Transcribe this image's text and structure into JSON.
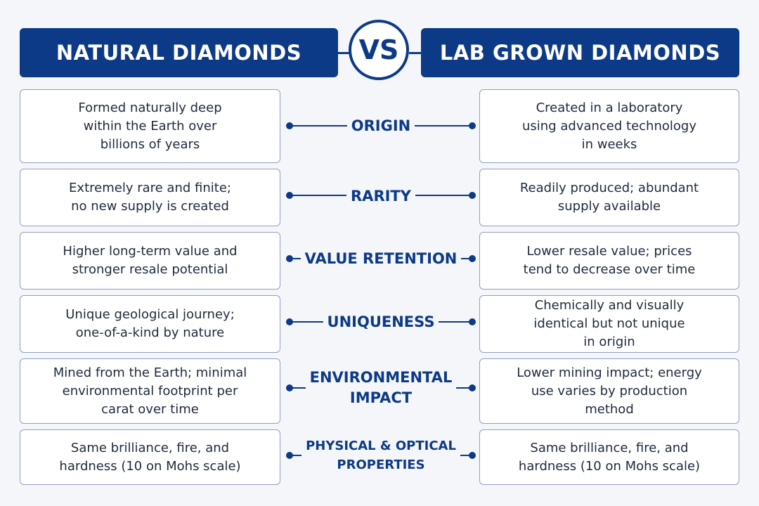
{
  "header": {
    "left_title": "NATURAL DIAMONDS",
    "vs": "VS",
    "right_title": "LAB GROWN DIAMONDS"
  },
  "colors": {
    "primary": "#0d3a86",
    "background": "#f4f6fa",
    "box_border": "#8e9fc0",
    "body_text": "#1e2a3c"
  },
  "rows": [
    {
      "category": "ORIGIN",
      "natural": "Formed naturally deep\nwithin the Earth over\nbillions of years",
      "lab": "Created in a laboratory\nusing advanced technology\nin weeks"
    },
    {
      "category": "RARITY",
      "natural": "Extremely rare and finite;\nno new supply is created",
      "lab": "Readily produced; abundant\nsupply available"
    },
    {
      "category": "VALUE RETENTION",
      "natural": "Higher long-term value and\nstronger resale potential",
      "lab": "Lower resale value; prices\ntend to decrease over time"
    },
    {
      "category": "UNIQUENESS",
      "natural": "Unique geological journey;\none-of-a-kind by nature",
      "lab": "Chemically and visually\nidentical but not unique\nin origin"
    },
    {
      "category": "ENVIRONMENTAL\nIMPACT",
      "natural": "Mined from the Earth; minimal\nenvironmental footprint per\ncarat over time",
      "lab": "Lower mining impact; energy\nuse varies by production\nmethod"
    },
    {
      "category": "PHYSICAL & OPTICAL\nPROPERTIES",
      "natural": "Same brilliance, fire, and\nhardness (10 on Mohs scale)",
      "lab": "Same brilliance, fire, and\nhardness (10 on Mohs scale)"
    }
  ]
}
